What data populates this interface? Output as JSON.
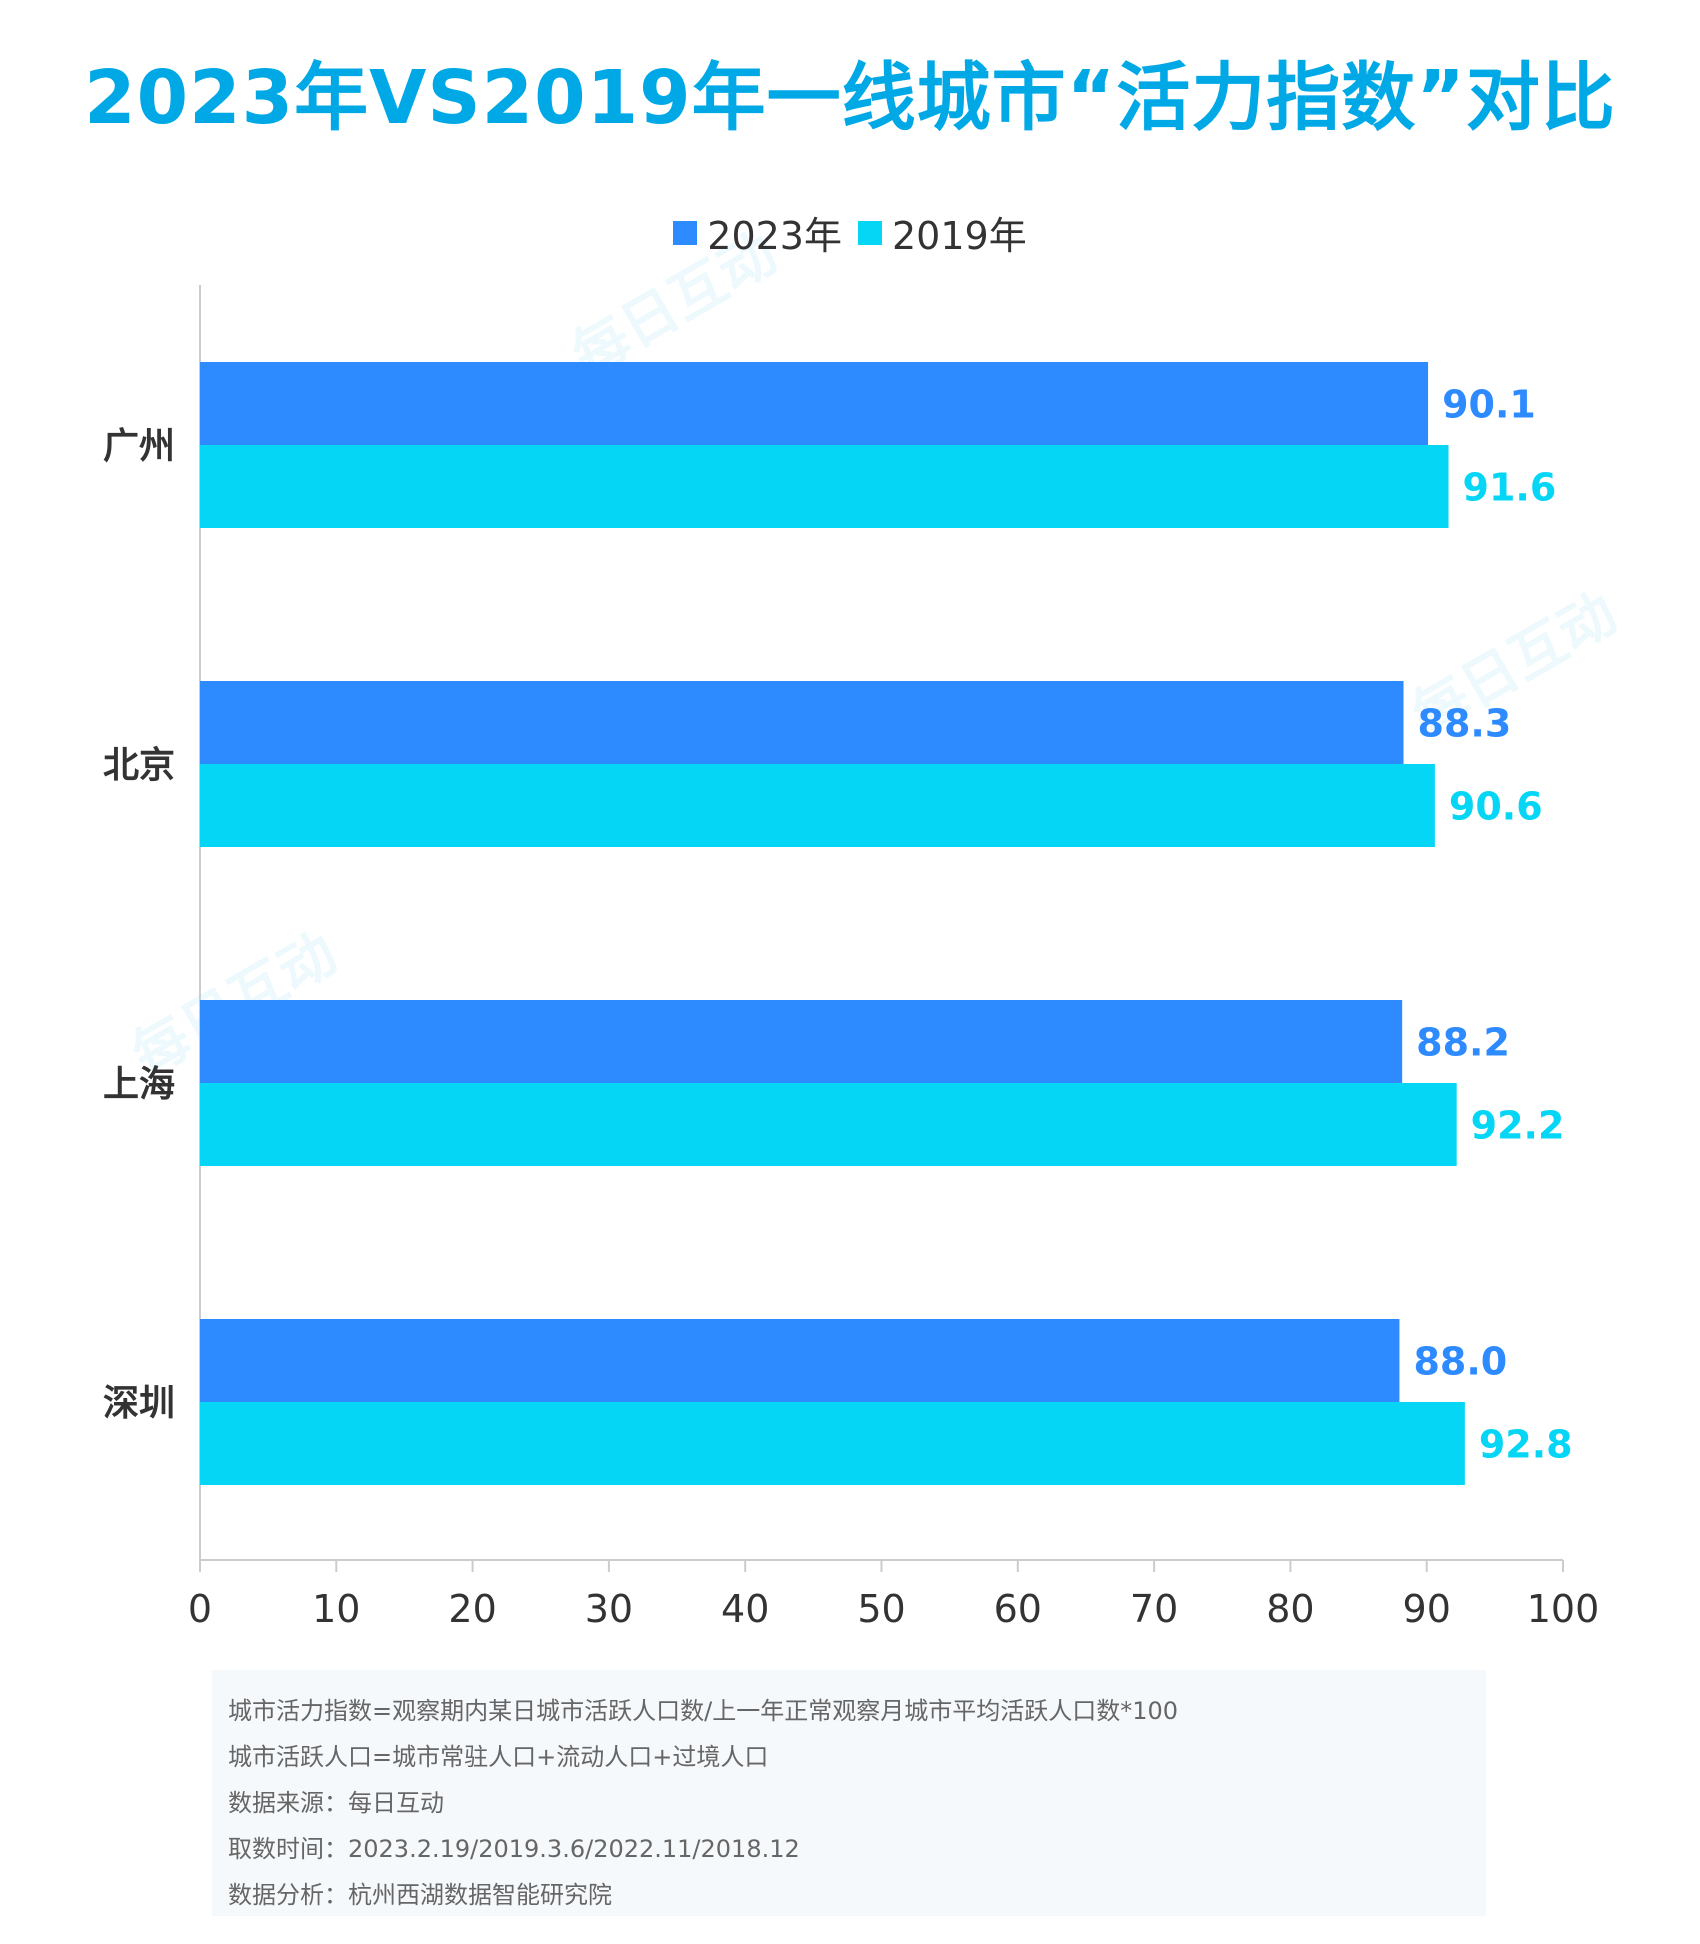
{
  "title": "2023年VS2019年一线城市“活力指数”对比",
  "legend": [
    {
      "name": "2023年",
      "color": "#2E8BFF"
    },
    {
      "name": "2019年",
      "color": "#06D6F6"
    }
  ],
  "chart_data": {
    "type": "bar",
    "orientation": "horizontal",
    "title": "2023年VS2019年一线城市“活力指数”对比",
    "categories": [
      "广州",
      "北京",
      "上海",
      "深圳"
    ],
    "series": [
      {
        "name": "2023年",
        "color": "#2E8BFF",
        "values": [
          90.1,
          88.3,
          88.2,
          88.0
        ]
      },
      {
        "name": "2019年",
        "color": "#06D6F6",
        "values": [
          91.6,
          90.6,
          92.2,
          92.8
        ]
      }
    ],
    "xlim": [
      0,
      100
    ],
    "xticks": [
      0,
      10,
      20,
      30,
      40,
      50,
      60,
      70,
      80,
      90,
      100
    ],
    "xlabel": "",
    "ylabel": "",
    "legend_position": "top-center",
    "grid": false
  },
  "notes": [
    "城市活力指数=观察期内某日城市活跃人口数/上一年正常观察月城市平均活跃人口数*100",
    "城市活跃人口=城市常驻人口+流动人口+过境人口",
    "数据来源：每日互动",
    "取数时间：2023.2.19/2019.3.6/2022.11/2018.12",
    "数据分析：杭州西湖数据智能研究院"
  ],
  "watermark": "每日互动"
}
